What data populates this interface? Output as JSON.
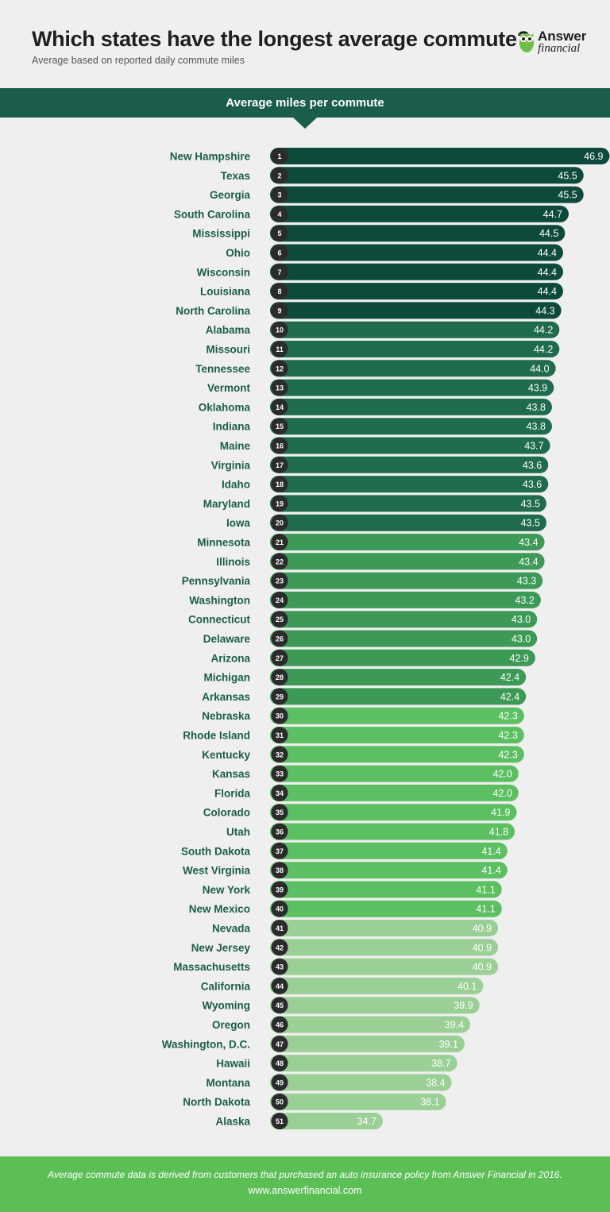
{
  "header": {
    "title": "Which states have the longest average commute?",
    "subtitle": "Average based on reported daily commute miles"
  },
  "logo": {
    "word1": "Answer",
    "word2": "financial"
  },
  "banner": {
    "label": "Average miles per commute"
  },
  "footer": {
    "note": "Average commute data is derived from customers that purchased an auto insurance policy from Answer Financial in 2016.",
    "url": "www.answerfinancial.com"
  },
  "colors": {
    "tier1": "#0e4a3c",
    "tier2": "#1f6b4d",
    "tier3": "#3d9a56",
    "tier4": "#5cbf62",
    "tier5": "#9acf95",
    "rank_circle": "#2b2b2b",
    "label_text": "#1a5d4a"
  },
  "chart_data": {
    "type": "bar",
    "orientation": "horizontal",
    "title": "Average miles per commute",
    "categories": [
      "New Hampshire",
      "Texas",
      "Georgia",
      "South Carolina",
      "Mississippi",
      "Ohio",
      "Wisconsin",
      "Louisiana",
      "North Carolina",
      "Alabama",
      "Missouri",
      "Tennessee",
      "Vermont",
      "Oklahoma",
      "Indiana",
      "Maine",
      "Virginia",
      "Idaho",
      "Maryland",
      "Iowa",
      "Minnesota",
      "Illinois",
      "Pennsylvania",
      "Washington",
      "Connecticut",
      "Delaware",
      "Arizona",
      "Michigan",
      "Arkansas",
      "Nebraska",
      "Rhode Island",
      "Kentucky",
      "Kansas",
      "Florida",
      "Colorado",
      "Utah",
      "South Dakota",
      "West Virginia",
      "New York",
      "New Mexico",
      "Nevada",
      "New Jersey",
      "Massachusetts",
      "California",
      "Wyoming",
      "Oregon",
      "Washington, D.C.",
      "Hawaii",
      "Montana",
      "North Dakota",
      "Alaska"
    ],
    "ranks": [
      "1",
      "2",
      "3",
      "4",
      "5",
      "6",
      "7",
      "8",
      "9",
      "10",
      "11",
      "12",
      "13",
      "14",
      "15",
      "16",
      "17",
      "18",
      "19",
      "20",
      "21",
      "22",
      "23",
      "24",
      "25",
      "26",
      "27",
      "28",
      "29",
      "30",
      "31",
      "32",
      "33",
      "34",
      "35",
      "36",
      "37",
      "38",
      "39",
      "40",
      "41",
      "42",
      "43",
      "44",
      "45",
      "46",
      "47",
      "48",
      "49",
      "50",
      "51"
    ],
    "values": [
      46.9,
      45.5,
      45.5,
      44.7,
      44.5,
      44.4,
      44.4,
      44.4,
      44.3,
      44.2,
      44.2,
      44.0,
      43.9,
      43.8,
      43.8,
      43.7,
      43.6,
      43.6,
      43.5,
      43.5,
      43.4,
      43.4,
      43.3,
      43.2,
      43.0,
      43.0,
      42.9,
      42.4,
      42.4,
      42.3,
      42.3,
      42.3,
      42.0,
      42.0,
      41.9,
      41.8,
      41.4,
      41.4,
      41.1,
      41.1,
      40.9,
      40.9,
      40.9,
      40.1,
      39.9,
      39.4,
      39.1,
      38.7,
      38.4,
      38.1,
      34.7
    ],
    "value_labels": [
      "46.9",
      "45.5",
      "45.5",
      "44.7",
      "44.5",
      "44.4",
      "44.4",
      "44.4",
      "44.3",
      "44.2",
      "44.2",
      "44.0",
      "43.9",
      "43.8",
      "43.8",
      "43.7",
      "43.6",
      "43.6",
      "43.5",
      "43.5",
      "43.4",
      "43.4",
      "43.3",
      "43.2",
      "43.0",
      "43.0",
      "42.9",
      "42.4",
      "42.4",
      "42.3",
      "42.3",
      "42.3",
      "42.0",
      "42.0",
      "41.9",
      "41.8",
      "41.4",
      "41.4",
      "41.1",
      "41.1",
      "40.9",
      "40.9",
      "40.9",
      "40.1",
      "39.9",
      "39.4",
      "39.1",
      "38.7",
      "38.4",
      "38.1",
      "34.7"
    ],
    "tier_breaks": [
      9,
      20,
      29,
      40,
      51
    ],
    "grid": false,
    "legend": "none"
  }
}
